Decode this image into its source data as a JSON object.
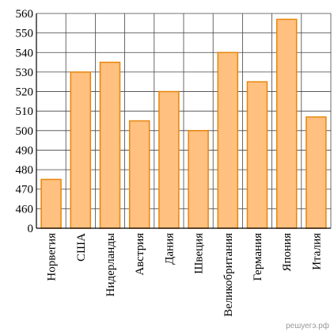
{
  "chart_data": {
    "type": "bar",
    "categories": [
      "Норвегия",
      "США",
      "Нидерланды",
      "Австрия",
      "Дания",
      "Швеция",
      "Великобритания",
      "Германия",
      "Япония",
      "Италия"
    ],
    "values": [
      475,
      530,
      535,
      505,
      520,
      500,
      540,
      525,
      557,
      507
    ],
    "color": "#ffc080",
    "edge_color": "#e8860a",
    "ylim": [
      0,
      560
    ],
    "yticks": [
      0,
      460,
      470,
      480,
      490,
      500,
      510,
      520,
      530,
      540,
      550,
      560
    ],
    "grid": true,
    "watermark": "решуегэ.рф"
  }
}
